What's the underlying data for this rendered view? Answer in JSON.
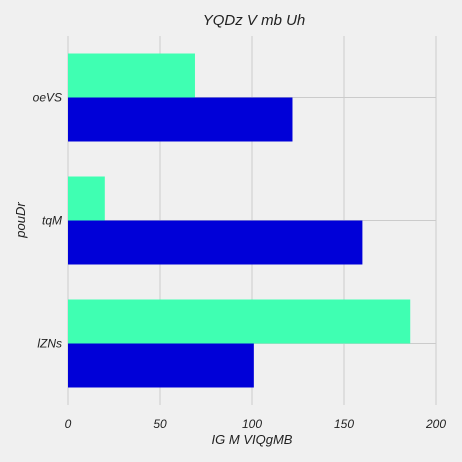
{
  "chart_data": {
    "type": "bar",
    "orientation": "horizontal",
    "title": "YQDz V mb  Uh",
    "xlabel": "IG M VIQgMB",
    "ylabel": "pouDr",
    "categories": [
      "oeVS",
      "tqM",
      "lZNs"
    ],
    "series": [
      {
        "color": "#3fffb2",
        "values": [
          69,
          20,
          186
        ]
      },
      {
        "color": "#0000d8",
        "values": [
          122,
          160,
          101
        ]
      }
    ],
    "xlim": [
      0,
      200
    ],
    "xticks": [
      "0",
      "50",
      "100",
      "150",
      "200"
    ],
    "grid": true,
    "legend": "none"
  }
}
